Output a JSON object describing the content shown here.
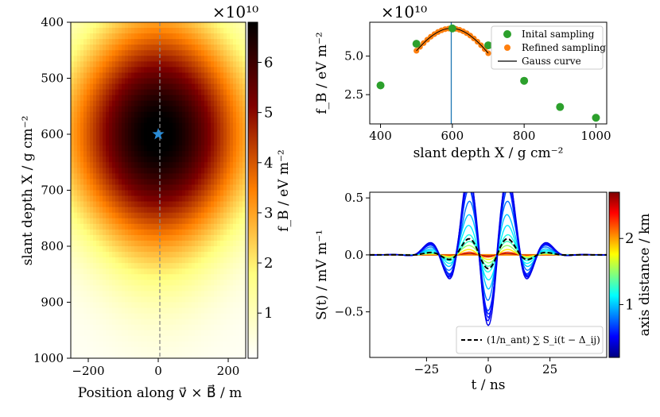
{
  "chart_data": [
    {
      "type": "heatmap",
      "title": "",
      "xlabel": "Position along v⃗ × B⃗  /  m",
      "ylabel": "slant depth X  /  g cm⁻²",
      "xlim": [
        -250,
        250
      ],
      "ylim": [
        1000,
        400
      ],
      "xticks": [
        -200,
        0,
        200
      ],
      "yticks": [
        400,
        500,
        600,
        700,
        800,
        900,
        1000
      ],
      "peak": {
        "x": 0,
        "y": 600,
        "marker": "star"
      },
      "colorbar": {
        "label": "f_B  /  eV m⁻²",
        "range": [
          0.1,
          6.8
        ],
        "ticks": [
          1,
          2,
          3,
          4,
          5,
          6
        ],
        "exponent": "×10¹⁰",
        "colormap": "afmhot_r"
      }
    },
    {
      "type": "scatter",
      "xlabel": "slant depth X  /  g cm⁻²",
      "ylabel": "f_B  /  eV m⁻²",
      "xlim": [
        370,
        1030
      ],
      "ylim": [
        0.6,
        7.2
      ],
      "xticks": [
        400,
        600,
        800,
        1000
      ],
      "yticks": [
        2.5,
        5.0
      ],
      "exponent": "×10¹⁰",
      "series": [
        {
          "name": "Inital sampling",
          "x": [
            400,
            500,
            600,
            700,
            800,
            900,
            1000
          ],
          "y": [
            3.1,
            5.8,
            6.8,
            5.7,
            3.4,
            1.7,
            1.0
          ],
          "color": "#2ca02c"
        },
        {
          "name": "Refined sampling",
          "x": [
            500,
            510,
            520,
            530,
            540,
            550,
            560,
            570,
            580,
            590,
            600,
            610,
            620,
            630,
            640,
            650,
            660,
            670,
            680,
            690,
            700
          ],
          "color": "#ff7f0e"
        },
        {
          "name": "Gauss curve",
          "mu": 597,
          "peak": 6.8,
          "sigma": 140,
          "color": "#000000"
        }
      ],
      "vline": {
        "x": 597,
        "color": "#1f77b4"
      },
      "legend": "upper right"
    },
    {
      "type": "line",
      "xlabel": "t  /  ns",
      "ylabel": "S(t)  /  mV m⁻¹",
      "xlim": [
        -48,
        48
      ],
      "ylim": [
        -0.9,
        0.55
      ],
      "xticks": [
        -25,
        0,
        25
      ],
      "yticks": [
        -0.5,
        0.0,
        0.5
      ],
      "legend": {
        "label": "(1/n_ant) ∑ S_i(t − Δ_ij)",
        "position": "lower right"
      },
      "colorbar": {
        "label": "axis distance  /  km",
        "range": [
          0.2,
          2.7
        ],
        "ticks": [
          1,
          2
        ],
        "colormap": "jet"
      },
      "series": [
        {
          "d": 0.45,
          "a": 0.62
        },
        {
          "d": 0.5,
          "a": 0.58
        },
        {
          "d": 0.55,
          "a": 0.55
        },
        {
          "d": 0.6,
          "a": 0.52
        },
        {
          "d": 0.65,
          "a": 0.49
        },
        {
          "d": 0.8,
          "a": 0.4
        },
        {
          "d": 1.0,
          "a": 0.3
        },
        {
          "d": 1.1,
          "a": 0.22
        },
        {
          "d": 1.2,
          "a": 0.15
        },
        {
          "d": 1.3,
          "a": 0.1
        },
        {
          "d": 1.5,
          "a": 0.07
        },
        {
          "d": 1.8,
          "a": 0.04
        },
        {
          "d": 2.2,
          "a": 0.02
        },
        {
          "d": 2.6,
          "a": 0.01
        }
      ],
      "mean": {
        "a": 0.12
      }
    }
  ]
}
